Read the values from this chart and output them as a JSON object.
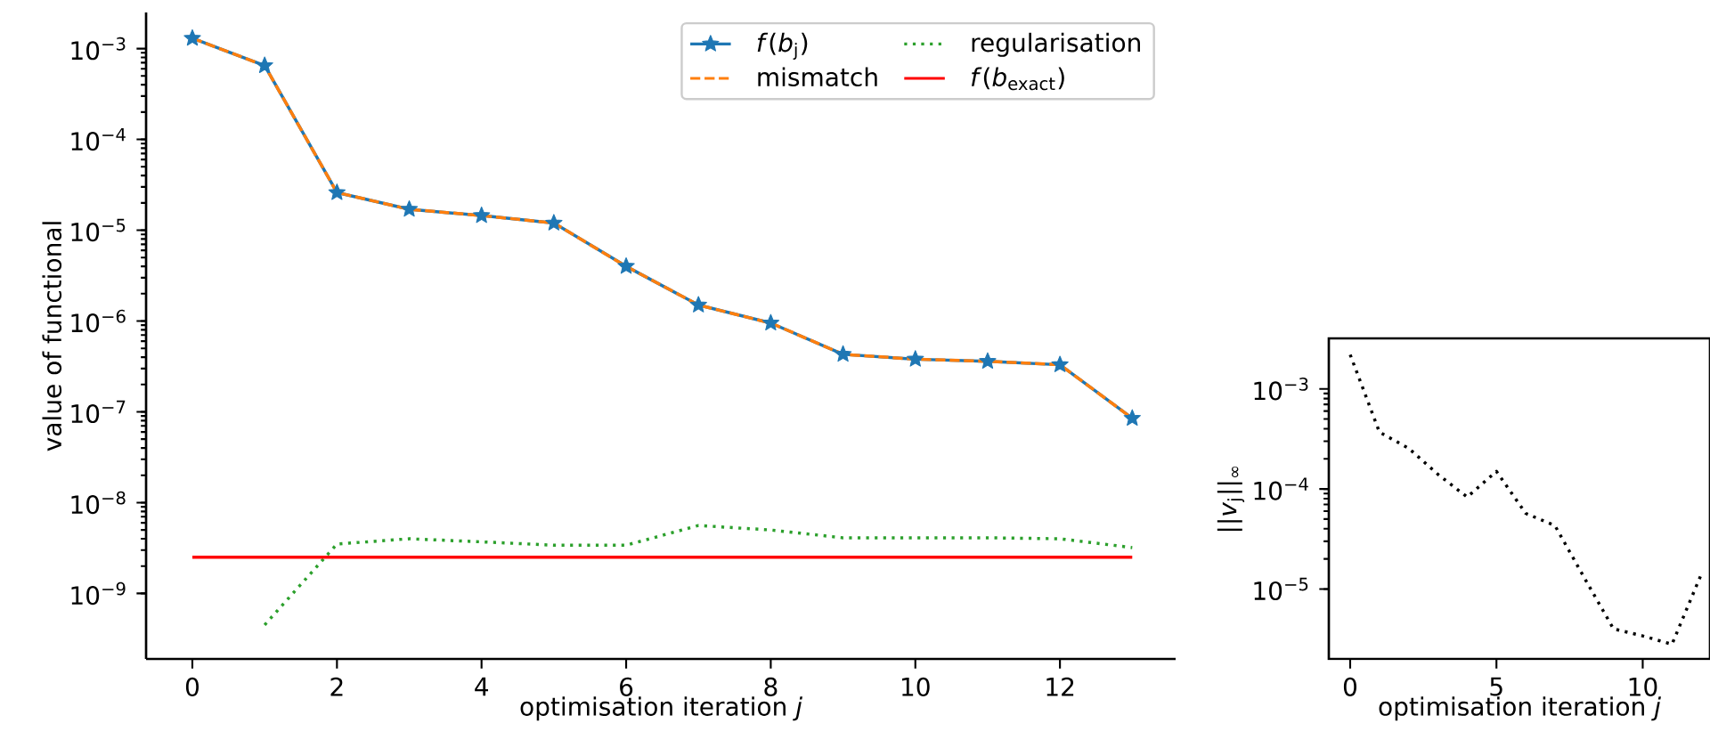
{
  "chart_data": [
    {
      "type": "line",
      "xlabel": "optimisation iteration *j*",
      "ylabel": "value of functional",
      "log": "y",
      "legend": "top right",
      "x": [
        0,
        1,
        2,
        3,
        4,
        5,
        6,
        7,
        8,
        9,
        10,
        11,
        12,
        13
      ],
      "series": [
        {
          "name": "*f*(*b*$_{j}$)",
          "color": "#1f77b4",
          "marker": "star",
          "line_style": "solid",
          "values": [
            0.0013,
            0.00065,
            2.6e-05,
            1.7e-05,
            1.45e-05,
            1.2e-05,
            4e-06,
            1.5e-06,
            9.5e-07,
            4.3e-07,
            3.8e-07,
            3.6e-07,
            3.3e-07,
            8.5e-08
          ]
        },
        {
          "name": "mismatch",
          "color": "#ff7f0e",
          "marker": "none",
          "line_style": "dashed",
          "values": [
            0.0013,
            0.00065,
            2.6e-05,
            1.7e-05,
            1.45e-05,
            1.2e-05,
            4e-06,
            1.5e-06,
            9.5e-07,
            4.3e-07,
            3.8e-07,
            3.6e-07,
            3.3e-07,
            8.5e-08
          ]
        },
        {
          "name": "regularisation",
          "color": "#2ca02c",
          "marker": "none",
          "line_style": "dotted",
          "values": [
            null,
            4.5e-10,
            3.5e-09,
            4e-09,
            3.7e-09,
            3.4e-09,
            3.4e-09,
            5.6e-09,
            5e-09,
            4.1e-09,
            4.1e-09,
            4.1e-09,
            4e-09,
            3.2e-09
          ]
        },
        {
          "name": "*f*(*b*$_{exact}$)",
          "color": "#ff0000",
          "marker": "none",
          "line_style": "solid",
          "values": [
            2.5e-09,
            2.5e-09,
            2.5e-09,
            2.5e-09,
            2.5e-09,
            2.5e-09,
            2.5e-09,
            2.5e-09,
            2.5e-09,
            2.5e-09,
            2.5e-09,
            2.5e-09,
            2.5e-09,
            2.5e-09
          ]
        }
      ],
      "xlim": [
        -0.64,
        13.6
      ],
      "xticks": [
        0,
        2,
        4,
        6,
        8,
        10,
        12
      ],
      "ylim": [
        1.9e-10,
        0.0025
      ],
      "yticks": [
        {
          "value": 1e-09,
          "label": "10$^{−9}$"
        },
        {
          "value": 1e-08,
          "label": "10$^{−8}$"
        },
        {
          "value": 1e-07,
          "label": "10$^{−7}$"
        },
        {
          "value": 1e-06,
          "label": "10$^{−6}$"
        },
        {
          "value": 1e-05,
          "label": "10$^{−5}$"
        },
        {
          "value": 0.0001,
          "label": "10$^{−4}$"
        },
        {
          "value": 0.001,
          "label": "10$^{−3}$"
        }
      ]
    },
    {
      "type": "line",
      "xlabel": "optimisation iteration *j*",
      "ylabel": "||*v*$_{j}$||$_{∞}$",
      "log": "y",
      "x": [
        0,
        1,
        2,
        3,
        4,
        5,
        6,
        7,
        8,
        9,
        10,
        11,
        12
      ],
      "series": [
        {
          "color": "#000000",
          "marker": "none",
          "line_style": "dotted",
          "values": [
            0.0022,
            0.00037,
            0.000255,
            0.00014,
            8.3e-05,
            0.00015,
            5.7e-05,
            4.3e-05,
            1.3e-05,
            4e-06,
            3.4e-06,
            2.8e-06,
            1.4e-05
          ]
        }
      ],
      "xlim": [
        -0.73,
        12.3
      ],
      "xticks": [
        0,
        5,
        10
      ],
      "ylim": [
        2e-06,
        0.0032
      ],
      "yticks": [
        {
          "value": 1e-05,
          "label": "10$^{−5}$"
        },
        {
          "value": 0.0001,
          "label": "10$^{−4}$"
        },
        {
          "value": 0.001,
          "label": "10$^{−3}$"
        }
      ]
    }
  ]
}
